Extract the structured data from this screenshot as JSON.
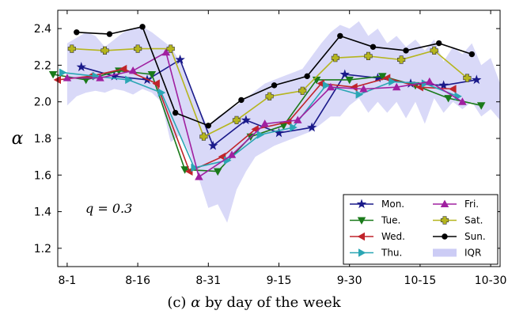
{
  "caption": {
    "prefix": "(c)",
    "symbol": "α",
    "text": "by day of the week"
  },
  "chart_data": {
    "type": "line",
    "ylabel": "α",
    "ylim": [
      1.1,
      2.5
    ],
    "yticks": [
      1.2,
      1.4,
      1.6,
      1.8,
      2.0,
      2.2,
      2.4
    ],
    "ytick_labels": [
      "1.2",
      "1.4",
      "1.6",
      "1.8",
      "2.0",
      "2.2",
      "2.4"
    ],
    "xlim": [
      "2014-07-30",
      "2014-11-01"
    ],
    "xticks": [
      "2014-08-01",
      "2014-08-16",
      "2014-08-31",
      "2014-09-15",
      "2014-09-30",
      "2014-10-15",
      "2014-10-30"
    ],
    "xtick_labels": [
      "8-1",
      "8-16",
      "8-31",
      "9-15",
      "9-30",
      "10-15",
      "10-30"
    ],
    "annotation": "q = 0.3",
    "legend_position": "lower-right",
    "iqr_label": "IQR",
    "iqr_color": "#ccccf5",
    "iqr": {
      "x": [
        "2014-08-01",
        "2014-08-03",
        "2014-08-05",
        "2014-08-07",
        "2014-08-09",
        "2014-08-11",
        "2014-08-13",
        "2014-08-15",
        "2014-08-17",
        "2014-08-19",
        "2014-08-21",
        "2014-08-23",
        "2014-08-25",
        "2014-08-27",
        "2014-08-29",
        "2014-08-31",
        "2014-09-02",
        "2014-09-04",
        "2014-09-06",
        "2014-09-08",
        "2014-09-10",
        "2014-09-12",
        "2014-09-14",
        "2014-09-16",
        "2014-09-18",
        "2014-09-20",
        "2014-09-22",
        "2014-09-24",
        "2014-09-26",
        "2014-09-28",
        "2014-09-30",
        "2014-10-02",
        "2014-10-04",
        "2014-10-06",
        "2014-10-08",
        "2014-10-10",
        "2014-10-12",
        "2014-10-14",
        "2014-10-16",
        "2014-10-18",
        "2014-10-20",
        "2014-10-22",
        "2014-10-24",
        "2014-10-26",
        "2014-10-28",
        "2014-10-30",
        "2014-11-01"
      ],
      "low": [
        1.98,
        2.03,
        2.05,
        2.06,
        2.05,
        2.07,
        2.06,
        2.04,
        2.07,
        2.05,
        2.0,
        1.78,
        1.82,
        1.72,
        1.58,
        1.42,
        1.44,
        1.34,
        1.52,
        1.62,
        1.7,
        1.73,
        1.76,
        1.78,
        1.8,
        1.82,
        1.84,
        1.88,
        1.92,
        1.92,
        1.98,
        2.02,
        1.94,
        2.0,
        1.94,
        2.0,
        1.91,
        2.0,
        1.88,
        2.02,
        1.94,
        2.0,
        1.96,
        2.0,
        1.92,
        1.96,
        1.9
      ],
      "high": [
        2.32,
        2.35,
        2.38,
        2.36,
        2.3,
        2.34,
        2.38,
        2.4,
        2.41,
        2.38,
        2.34,
        2.3,
        2.22,
        2.1,
        1.96,
        1.86,
        1.92,
        1.95,
        1.98,
        2.02,
        2.06,
        2.1,
        2.12,
        2.14,
        2.16,
        2.18,
        2.25,
        2.32,
        2.38,
        2.42,
        2.4,
        2.44,
        2.36,
        2.4,
        2.32,
        2.36,
        2.3,
        2.34,
        2.28,
        2.34,
        2.22,
        2.3,
        2.26,
        2.32,
        2.2,
        2.24,
        2.1
      ]
    },
    "series": [
      {
        "name": "Mon.",
        "color": "#1a1a8a",
        "marker": "star",
        "x": [
          "2014-08-04",
          "2014-08-11",
          "2014-08-18",
          "2014-08-25",
          "2014-09-01",
          "2014-09-08",
          "2014-09-15",
          "2014-09-22",
          "2014-09-29",
          "2014-10-06",
          "2014-10-13",
          "2014-10-20",
          "2014-10-27"
        ],
        "y": [
          2.19,
          2.14,
          2.12,
          2.23,
          1.76,
          1.9,
          1.83,
          1.86,
          2.15,
          2.13,
          2.1,
          2.09,
          2.12
        ]
      },
      {
        "name": "Tue.",
        "color": "#1a7a1a",
        "marker": "triangle-down",
        "x": [
          "2014-07-29",
          "2014-08-05",
          "2014-08-12",
          "2014-08-19",
          "2014-08-26",
          "2014-09-02",
          "2014-09-09",
          "2014-09-16",
          "2014-09-23",
          "2014-09-30",
          "2014-10-07",
          "2014-10-14",
          "2014-10-21",
          "2014-10-28"
        ],
        "y": [
          2.15,
          2.12,
          2.17,
          2.15,
          1.63,
          1.62,
          1.81,
          1.87,
          2.12,
          2.12,
          2.14,
          2.09,
          2.02,
          1.98
        ]
      },
      {
        "name": "Wed.",
        "color": "#c0242b",
        "marker": "triangle-left",
        "x": [
          "2014-07-30",
          "2014-08-06",
          "2014-08-13",
          "2014-08-20",
          "2014-08-27",
          "2014-09-03",
          "2014-09-10",
          "2014-09-17",
          "2014-09-24",
          "2014-10-01",
          "2014-10-08",
          "2014-10-15",
          "2014-10-22"
        ],
        "y": [
          2.12,
          2.14,
          2.18,
          2.1,
          1.62,
          1.7,
          1.85,
          1.89,
          2.1,
          2.08,
          2.13,
          2.08,
          2.07
        ]
      },
      {
        "name": "Thu.",
        "color": "#2aa6b4",
        "marker": "triangle-right",
        "x": [
          "2014-07-31",
          "2014-08-07",
          "2014-08-14",
          "2014-08-21",
          "2014-08-28",
          "2014-09-04",
          "2014-09-11",
          "2014-09-18",
          "2014-09-25",
          "2014-10-02",
          "2014-10-09",
          "2014-10-16",
          "2014-10-23"
        ],
        "y": [
          2.16,
          2.14,
          2.12,
          2.05,
          1.64,
          1.68,
          1.82,
          1.86,
          2.09,
          2.04,
          2.11,
          2.1,
          2.03
        ]
      },
      {
        "name": "Fri.",
        "color": "#a020a0",
        "marker": "triangle-up",
        "x": [
          "2014-08-01",
          "2014-08-08",
          "2014-08-15",
          "2014-08-22",
          "2014-08-29",
          "2014-09-05",
          "2014-09-12",
          "2014-09-19",
          "2014-09-26",
          "2014-10-03",
          "2014-10-10",
          "2014-10-17",
          "2014-10-24"
        ],
        "y": [
          2.13,
          2.13,
          2.17,
          2.27,
          1.59,
          1.71,
          1.88,
          1.9,
          2.08,
          2.07,
          2.08,
          2.11,
          2.0
        ]
      },
      {
        "name": "Sat.",
        "color": "#b5b51e",
        "marker": "plus",
        "x": [
          "2014-08-02",
          "2014-08-09",
          "2014-08-16",
          "2014-08-23",
          "2014-08-30",
          "2014-09-06",
          "2014-09-13",
          "2014-09-20",
          "2014-09-27",
          "2014-10-04",
          "2014-10-11",
          "2014-10-18",
          "2014-10-25"
        ],
        "y": [
          2.29,
          2.28,
          2.29,
          2.29,
          1.81,
          1.9,
          2.03,
          2.06,
          2.24,
          2.25,
          2.23,
          2.28,
          2.13
        ]
      },
      {
        "name": "Sun.",
        "color": "#000000",
        "marker": "circle",
        "x": [
          "2014-08-03",
          "2014-08-10",
          "2014-08-17",
          "2014-08-24",
          "2014-08-31",
          "2014-09-07",
          "2014-09-14",
          "2014-09-21",
          "2014-09-28",
          "2014-10-05",
          "2014-10-12",
          "2014-10-19",
          "2014-10-26"
        ],
        "y": [
          2.38,
          2.37,
          2.41,
          1.94,
          1.87,
          2.01,
          2.09,
          2.14,
          2.36,
          2.3,
          2.28,
          2.32,
          2.26
        ]
      }
    ]
  }
}
